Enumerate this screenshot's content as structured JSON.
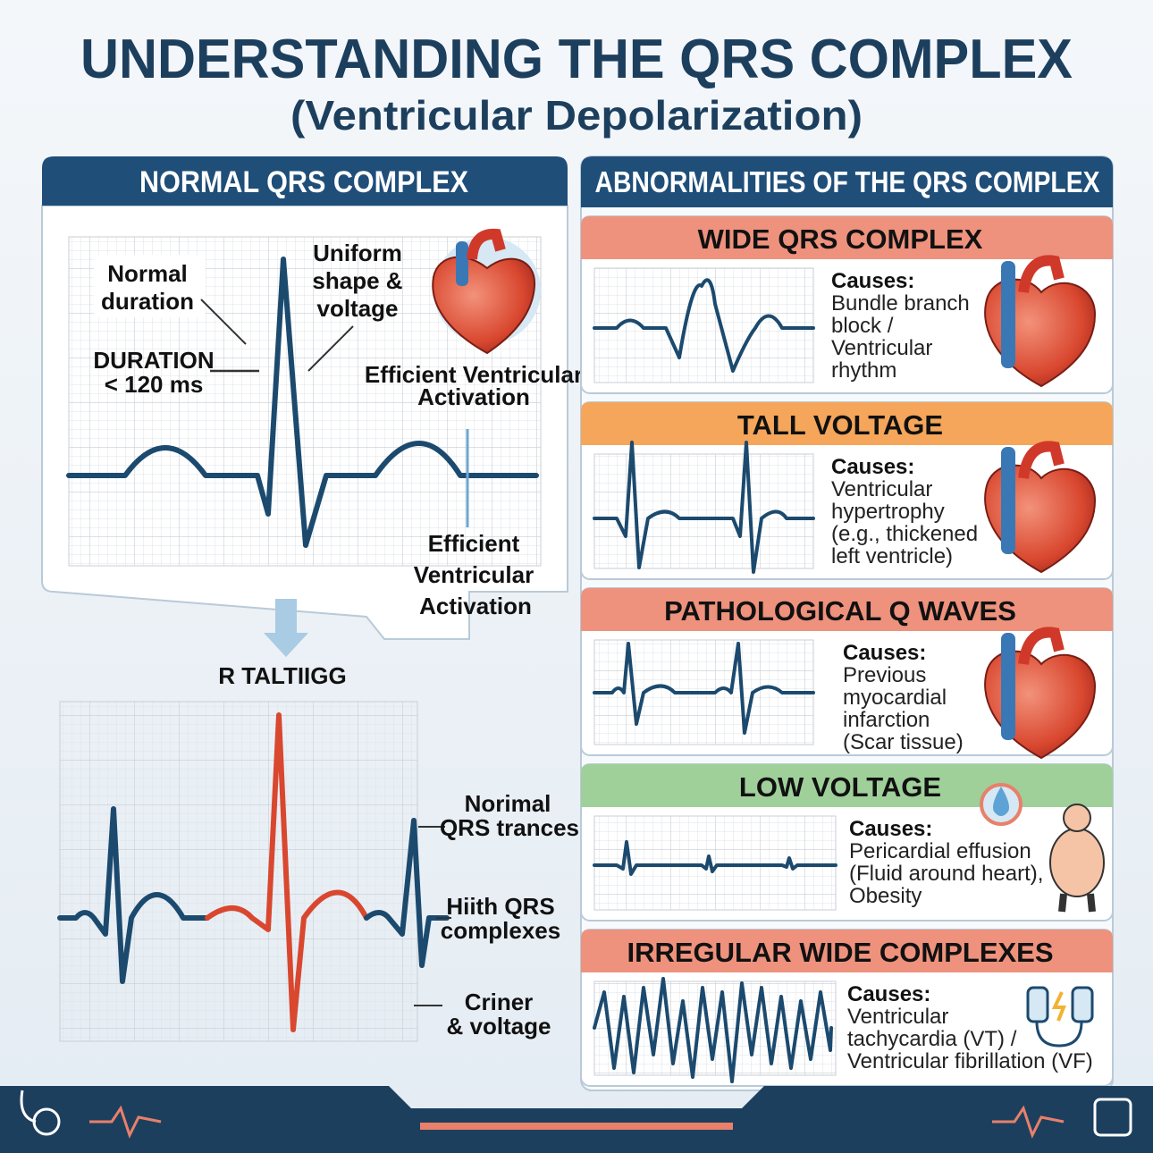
{
  "header": {
    "title": "UNDERSTANDING THE QRS COMPLEX",
    "subtitle": "(Ventricular Depolarization)"
  },
  "normal_panel": {
    "heading": "NORMAL QRS COMPLEX",
    "labels": {
      "normal_duration": [
        "Normal",
        "duration"
      ],
      "uniform": [
        "Uniform",
        "shape &",
        "voltage"
      ],
      "duration": [
        "DURATION",
        "< 120 ms"
      ],
      "activation_small": [
        "Efficient Ventricular",
        "Activation"
      ],
      "activation_large": [
        "Efficient",
        "Ventricular",
        "Activation"
      ]
    },
    "comparison": {
      "title": "R TALTIIGG",
      "labels": [
        [
          "Norimal",
          "QRS trances"
        ],
        [
          "Hiith QRS",
          "complexes"
        ],
        [
          "Criner",
          "& voltage"
        ]
      ]
    }
  },
  "abnormal_panel": {
    "heading": "ABNORMALITIES OF THE QRS COMPLEX",
    "cards": [
      {
        "title": "WIDE QRS COMPLEX",
        "causes_label": "Causes:",
        "causes": [
          "Bundle branch",
          "block /",
          "Ventricular",
          "rhythm"
        ]
      },
      {
        "title": "TALL VOLTAGE",
        "causes_label": "Causes:",
        "causes": [
          "Ventricular",
          "hypertrophy",
          "(e.g., thickened",
          "left ventricle)"
        ]
      },
      {
        "title": "PATHOLOGICAL Q WAVES",
        "causes_label": "Causes:",
        "causes": [
          "Previous",
          "myocardial",
          "infarction",
          "(Scar tissue)"
        ]
      },
      {
        "title": "LOW VOLTAGE",
        "causes_label": "Causes:",
        "causes": [
          "Pericardial effusion",
          "(Fluid around heart),",
          "Obesity"
        ]
      },
      {
        "title": "IRREGULAR WIDE COMPLEXES",
        "causes_label": "Causes:",
        "causes": [
          "Ventricular",
          "tachycardia (VT) /",
          "Ventricular fibrillation (VF)"
        ]
      }
    ]
  }
}
